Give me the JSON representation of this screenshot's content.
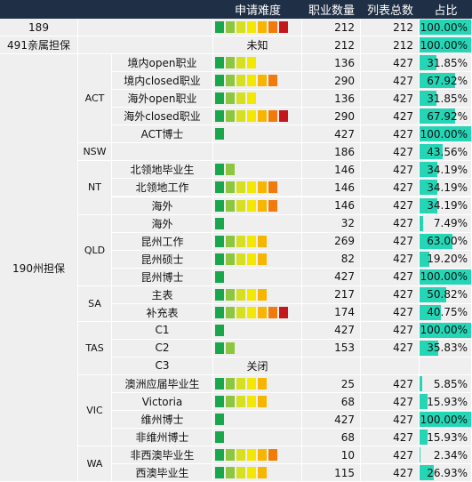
{
  "header": {
    "difficulty": "申请难度",
    "occupation_count": "职业数量",
    "list_total": "列表总数",
    "ratio": "占比"
  },
  "difficulty_colors": [
    "#1aa64b",
    "#8dc63f",
    "#d6e021",
    "#f5e800",
    "#f7b500",
    "#f07b0c",
    "#c4161c"
  ],
  "groups": [
    {
      "label": "189"
    },
    {
      "label": "491亲属担保"
    },
    {
      "label": "190州担保"
    }
  ],
  "states": [
    "ACT",
    "NSW",
    "NT",
    "QLD",
    "SA",
    "TAS",
    "VIC",
    "WA"
  ],
  "rows": [
    {
      "name": "",
      "level": 7,
      "count": "212",
      "total": "212",
      "ratio": "100.00%",
      "fill": 1.0
    },
    {
      "name": "",
      "level": 0,
      "note": "未知",
      "count": "212",
      "total": "212",
      "ratio": "100.00%",
      "fill": 1.0
    },
    {
      "name": "境内open职业",
      "level": 4,
      "count": "136",
      "total": "427",
      "ratio": "31.85%",
      "fill": 0.3185
    },
    {
      "name": "境内closed职业",
      "level": 6,
      "count": "290",
      "total": "427",
      "ratio": "67.92%",
      "fill": 0.6792
    },
    {
      "name": "海外open职业",
      "level": 4,
      "count": "136",
      "total": "427",
      "ratio": "31.85%",
      "fill": 0.3185
    },
    {
      "name": "海外closed职业",
      "level": 7,
      "count": "290",
      "total": "427",
      "ratio": "67.92%",
      "fill": 0.6792
    },
    {
      "name": "ACT博士",
      "level": 1,
      "count": "427",
      "total": "427",
      "ratio": "100.00%",
      "fill": 1.0
    },
    {
      "name": "",
      "level": 0,
      "count": "186",
      "total": "427",
      "ratio": "43.56%",
      "fill": 0.4356
    },
    {
      "name": "北领地毕业生",
      "level": 2,
      "count": "146",
      "total": "427",
      "ratio": "34.19%",
      "fill": 0.3419
    },
    {
      "name": "北领地工作",
      "level": 6,
      "count": "146",
      "total": "427",
      "ratio": "34.19%",
      "fill": 0.3419
    },
    {
      "name": "海外",
      "level": 6,
      "count": "146",
      "total": "427",
      "ratio": "34.19%",
      "fill": 0.3419
    },
    {
      "name": "海外",
      "level": 1,
      "count": "32",
      "total": "427",
      "ratio": "7.49%",
      "fill": 0.0749
    },
    {
      "name": "昆州工作",
      "level": 5,
      "count": "269",
      "total": "427",
      "ratio": "63.00%",
      "fill": 0.63
    },
    {
      "name": "昆州硕士",
      "level": 5,
      "count": "82",
      "total": "427",
      "ratio": "19.20%",
      "fill": 0.192
    },
    {
      "name": "昆州博士",
      "level": 1,
      "count": "427",
      "total": "427",
      "ratio": "100.00%",
      "fill": 1.0
    },
    {
      "name": "主表",
      "level": 5,
      "count": "217",
      "total": "427",
      "ratio": "50.82%",
      "fill": 0.5082
    },
    {
      "name": "补充表",
      "level": 7,
      "count": "174",
      "total": "427",
      "ratio": "40.75%",
      "fill": 0.4075
    },
    {
      "name": "C1",
      "level": 1,
      "count": "427",
      "total": "427",
      "ratio": "100.00%",
      "fill": 1.0
    },
    {
      "name": "C2",
      "level": 2,
      "count": "153",
      "total": "427",
      "ratio": "35.83%",
      "fill": 0.3583
    },
    {
      "name": "C3",
      "level": 0,
      "note": "关闭",
      "count": "",
      "total": "",
      "ratio": "",
      "fill": 0
    },
    {
      "name": "澳洲应届毕业生",
      "level": 5,
      "count": "25",
      "total": "427",
      "ratio": "5.85%",
      "fill": 0.0585
    },
    {
      "name": "Victoria",
      "level": 5,
      "count": "68",
      "total": "427",
      "ratio": "15.93%",
      "fill": 0.1593
    },
    {
      "name": "维州博士",
      "level": 1,
      "count": "427",
      "total": "427",
      "ratio": "100.00%",
      "fill": 1.0
    },
    {
      "name": "非维州博士",
      "level": 1,
      "count": "68",
      "total": "427",
      "ratio": "15.93%",
      "fill": 0.1593
    },
    {
      "name": "非西澳毕业生",
      "level": 6,
      "count": "10",
      "total": "427",
      "ratio": "2.34%",
      "fill": 0.0234
    },
    {
      "name": "西澳毕业生",
      "level": 5,
      "count": "115",
      "total": "427",
      "ratio": "26.93%",
      "fill": 0.2693
    }
  ]
}
